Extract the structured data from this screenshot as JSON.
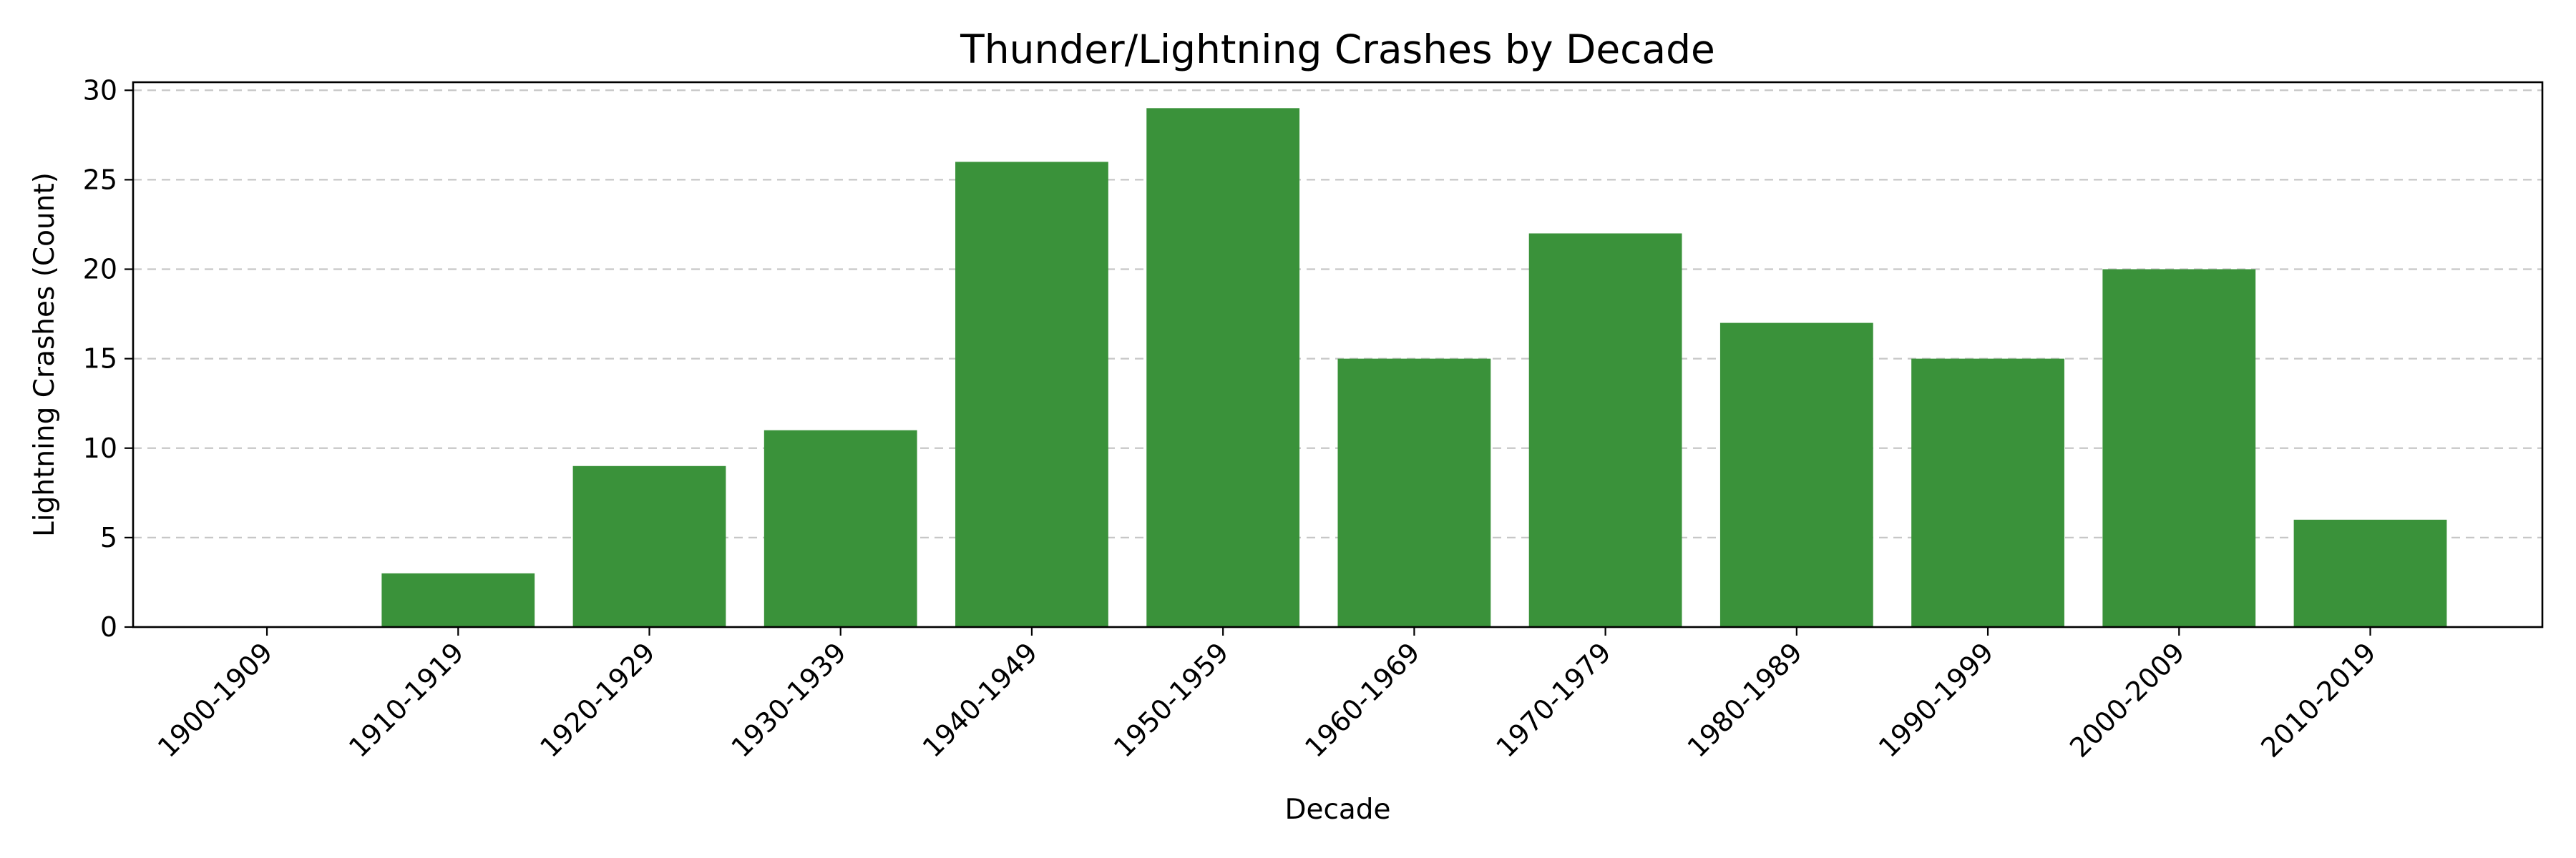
{
  "chart_data": {
    "type": "bar",
    "title": "Thunder/Lightning Crashes by Decade",
    "xlabel": "Decade",
    "ylabel": "Lightning Crashes (Count)",
    "categories": [
      "1900-1909",
      "1910-1919",
      "1920-1929",
      "1930-1939",
      "1940-1949",
      "1950-1959",
      "1960-1969",
      "1970-1979",
      "1980-1989",
      "1990-1999",
      "2000-2009",
      "2010-2019"
    ],
    "values": [
      0,
      3,
      9,
      11,
      26,
      29,
      15,
      22,
      17,
      15,
      20,
      6
    ],
    "ylim": [
      0,
      30.45
    ],
    "yticks": [
      0,
      5,
      10,
      15,
      20,
      25,
      30
    ],
    "grid": "y-dashed",
    "bar_color": "#3a923a"
  }
}
